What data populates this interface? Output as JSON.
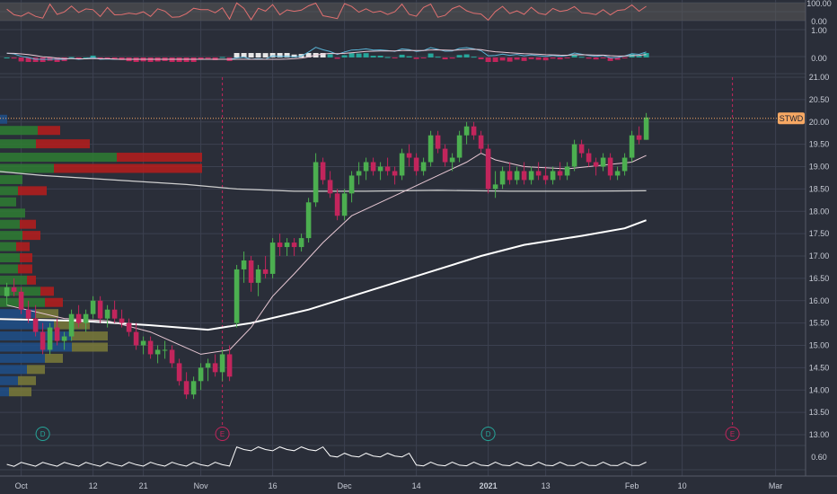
{
  "ticker": "STWD",
  "colors": {
    "bg": "#2a2e39",
    "grid": "#3c4150",
    "up": "#4caf50",
    "down": "#c2255c",
    "ema_fast": "#e8c8d4",
    "ema_mid": "#d0d0d0",
    "ema_slow": "#ffffff",
    "rsi": "#e07070",
    "macd": "#5ab4d6",
    "signal": "#e8c8d4",
    "price_tag": "#f7a863",
    "vp_up": "#2e7d32",
    "vp_down": "#b71c1c",
    "vp_blue": "#1f4f8a",
    "vp_olive": "#7a7a3a",
    "event": "#c2255c"
  },
  "chart_data": {
    "type": "candlestick",
    "y_axis_ticks": [
      "21.00",
      "20.50",
      "20.00",
      "19.50",
      "19.00",
      "18.50",
      "18.00",
      "17.50",
      "17.00",
      "16.50",
      "16.00",
      "15.50",
      "15.00",
      "14.50",
      "14.00",
      "13.50",
      "13.00"
    ],
    "ylim": [
      12.9,
      21.1
    ],
    "x_ticks": [
      {
        "label": "Oct",
        "bar": 2
      },
      {
        "label": "12",
        "bar": 12
      },
      {
        "label": "21",
        "bar": 19
      },
      {
        "label": "Nov",
        "bar": 27
      },
      {
        "label": "16",
        "bar": 37
      },
      {
        "label": "Dec",
        "bar": 47
      },
      {
        "label": "14",
        "bar": 57
      },
      {
        "label": "2021",
        "bar": 67,
        "bold": true
      },
      {
        "label": "13",
        "bar": 75
      },
      {
        "label": "Feb",
        "bar": 87
      },
      {
        "label": "10",
        "bar": 94
      },
      {
        "label": "Mar",
        "bar": 107
      }
    ],
    "last_price": 20.08,
    "candles": [
      [
        16.1,
        16.4,
        15.9,
        16.3
      ],
      [
        16.3,
        16.5,
        16.1,
        16.2
      ],
      [
        16.2,
        16.3,
        15.7,
        15.8
      ],
      [
        15.8,
        16.0,
        15.5,
        15.6
      ],
      [
        15.6,
        15.9,
        15.2,
        15.3
      ],
      [
        15.3,
        15.5,
        14.8,
        14.9
      ],
      [
        14.9,
        15.5,
        14.8,
        15.4
      ],
      [
        15.4,
        15.6,
        15.0,
        15.1
      ],
      [
        15.1,
        15.3,
        14.9,
        15.2
      ],
      [
        15.2,
        15.8,
        15.1,
        15.7
      ],
      [
        15.7,
        15.9,
        15.4,
        15.5
      ],
      [
        15.5,
        15.8,
        15.3,
        15.7
      ],
      [
        15.7,
        16.1,
        15.6,
        16.0
      ],
      [
        16.0,
        16.1,
        15.5,
        15.6
      ],
      [
        15.6,
        15.9,
        15.4,
        15.8
      ],
      [
        15.8,
        16.0,
        15.5,
        15.6
      ],
      [
        15.6,
        15.8,
        15.4,
        15.5
      ],
      [
        15.5,
        15.6,
        15.2,
        15.3
      ],
      [
        15.3,
        15.5,
        14.9,
        15.0
      ],
      [
        15.0,
        15.2,
        14.8,
        15.1
      ],
      [
        15.1,
        15.2,
        14.7,
        14.8
      ],
      [
        14.8,
        15.0,
        14.6,
        14.9
      ],
      [
        14.9,
        15.1,
        14.7,
        14.9
      ],
      [
        14.9,
        15.0,
        14.5,
        14.6
      ],
      [
        14.6,
        14.7,
        14.1,
        14.2
      ],
      [
        14.2,
        14.4,
        13.8,
        13.9
      ],
      [
        13.9,
        14.3,
        13.8,
        14.2
      ],
      [
        14.2,
        14.6,
        14.0,
        14.5
      ],
      [
        14.5,
        14.7,
        14.2,
        14.6
      ],
      [
        14.6,
        14.8,
        14.3,
        14.4
      ],
      [
        14.4,
        14.9,
        14.2,
        14.8
      ],
      [
        14.8,
        15.0,
        14.2,
        14.3
      ],
      [
        15.5,
        16.8,
        15.4,
        16.7
      ],
      [
        16.7,
        17.1,
        16.4,
        16.9
      ],
      [
        16.9,
        17.0,
        16.2,
        16.4
      ],
      [
        16.4,
        16.8,
        16.1,
        16.7
      ],
      [
        16.7,
        17.0,
        16.5,
        16.6
      ],
      [
        16.6,
        17.4,
        16.5,
        17.3
      ],
      [
        17.3,
        17.5,
        17.0,
        17.2
      ],
      [
        17.2,
        17.4,
        17.0,
        17.3
      ],
      [
        17.3,
        17.4,
        17.0,
        17.2
      ],
      [
        17.2,
        17.5,
        17.1,
        17.4
      ],
      [
        17.4,
        18.3,
        17.3,
        18.2
      ],
      [
        18.2,
        19.3,
        18.1,
        19.1
      ],
      [
        19.1,
        19.2,
        18.6,
        18.7
      ],
      [
        18.7,
        18.9,
        18.3,
        18.4
      ],
      [
        18.4,
        18.5,
        17.8,
        17.9
      ],
      [
        17.9,
        18.5,
        17.8,
        18.4
      ],
      [
        18.4,
        18.9,
        18.2,
        18.8
      ],
      [
        18.8,
        19.1,
        18.6,
        18.9
      ],
      [
        18.9,
        19.2,
        18.7,
        19.1
      ],
      [
        19.1,
        19.2,
        18.8,
        18.9
      ],
      [
        18.9,
        19.1,
        18.7,
        19.0
      ],
      [
        19.0,
        19.2,
        18.8,
        18.9
      ],
      [
        18.9,
        19.0,
        18.6,
        18.8
      ],
      [
        18.8,
        19.4,
        18.7,
        19.3
      ],
      [
        19.3,
        19.5,
        19.0,
        19.2
      ],
      [
        19.2,
        19.3,
        18.8,
        18.9
      ],
      [
        18.9,
        19.2,
        18.8,
        19.1
      ],
      [
        19.1,
        19.8,
        19.0,
        19.7
      ],
      [
        19.7,
        19.8,
        19.3,
        19.4
      ],
      [
        19.4,
        19.5,
        19.0,
        19.1
      ],
      [
        19.1,
        19.3,
        18.9,
        19.2
      ],
      [
        19.2,
        19.8,
        19.1,
        19.7
      ],
      [
        19.7,
        20.0,
        19.5,
        19.9
      ],
      [
        19.9,
        20.0,
        19.6,
        19.7
      ],
      [
        19.7,
        19.8,
        19.3,
        19.4
      ],
      [
        19.4,
        19.5,
        18.4,
        18.5
      ],
      [
        18.5,
        18.9,
        18.3,
        18.6
      ],
      [
        18.6,
        19.0,
        18.5,
        18.9
      ],
      [
        18.9,
        19.1,
        18.6,
        18.7
      ],
      [
        18.7,
        19.0,
        18.6,
        18.9
      ],
      [
        18.9,
        19.1,
        18.6,
        18.7
      ],
      [
        18.7,
        19.0,
        18.6,
        18.9
      ],
      [
        18.9,
        19.1,
        18.7,
        18.8
      ],
      [
        18.8,
        19.0,
        18.6,
        18.7
      ],
      [
        18.7,
        19.0,
        18.6,
        18.9
      ],
      [
        18.9,
        19.1,
        18.7,
        18.8
      ],
      [
        18.8,
        19.1,
        18.7,
        19.0
      ],
      [
        19.0,
        19.6,
        18.9,
        19.5
      ],
      [
        19.5,
        19.6,
        19.2,
        19.3
      ],
      [
        19.3,
        19.4,
        19.0,
        19.1
      ],
      [
        19.1,
        19.2,
        18.8,
        19.0
      ],
      [
        19.0,
        19.3,
        18.9,
        19.2
      ],
      [
        19.2,
        19.3,
        18.7,
        18.8
      ],
      [
        18.8,
        19.0,
        18.7,
        18.9
      ],
      [
        18.9,
        19.3,
        18.8,
        19.2
      ],
      [
        19.2,
        19.8,
        19.1,
        19.7
      ],
      [
        19.7,
        19.9,
        19.5,
        19.6
      ],
      [
        19.6,
        20.2,
        19.6,
        20.1
      ]
    ],
    "ema_fast": [
      [
        0,
        15.9
      ],
      [
        8,
        15.6
      ],
      [
        14,
        15.55
      ],
      [
        20,
        15.3
      ],
      [
        27,
        14.8
      ],
      [
        31,
        14.9
      ],
      [
        34,
        15.4
      ],
      [
        37,
        16.1
      ],
      [
        40,
        16.6
      ],
      [
        44,
        17.3
      ],
      [
        48,
        17.9
      ],
      [
        52,
        18.2
      ],
      [
        56,
        18.5
      ],
      [
        60,
        18.8
      ],
      [
        64,
        19.1
      ],
      [
        66,
        19.3
      ],
      [
        68,
        19.15
      ],
      [
        72,
        19.0
      ],
      [
        78,
        18.95
      ],
      [
        84,
        19.05
      ],
      [
        87,
        19.1
      ],
      [
        89,
        19.25
      ]
    ],
    "ema_mid": [
      [
        -5,
        18.95
      ],
      [
        5,
        18.8
      ],
      [
        15,
        18.7
      ],
      [
        25,
        18.6
      ],
      [
        32,
        18.5
      ],
      [
        40,
        18.45
      ],
      [
        50,
        18.45
      ],
      [
        60,
        18.47
      ],
      [
        70,
        18.45
      ],
      [
        80,
        18.45
      ],
      [
        89,
        18.46
      ]
    ],
    "ema_slow": [
      [
        -5,
        15.6
      ],
      [
        10,
        15.55
      ],
      [
        20,
        15.45
      ],
      [
        28,
        15.35
      ],
      [
        34,
        15.5
      ],
      [
        42,
        15.8
      ],
      [
        50,
        16.2
      ],
      [
        58,
        16.6
      ],
      [
        66,
        17.0
      ],
      [
        72,
        17.25
      ],
      [
        80,
        17.45
      ],
      [
        86,
        17.62
      ],
      [
        89,
        17.8
      ]
    ],
    "event_markers": [
      {
        "label": "D",
        "bar": 5,
        "color": "#26a69a",
        "line": false
      },
      {
        "label": "E",
        "bar": 30,
        "color": "#c2255c",
        "line": true
      },
      {
        "label": "D",
        "bar": 67,
        "color": "#26a69a",
        "line": false
      },
      {
        "label": "E",
        "bar": 101,
        "color": "#c2255c",
        "line": true
      }
    ],
    "indicators": {
      "rsi_ticks": [
        "100.00",
        "0.00"
      ],
      "macd_ticks": [
        "1.00",
        "0.00"
      ],
      "volume_tick": "0.60"
    }
  }
}
